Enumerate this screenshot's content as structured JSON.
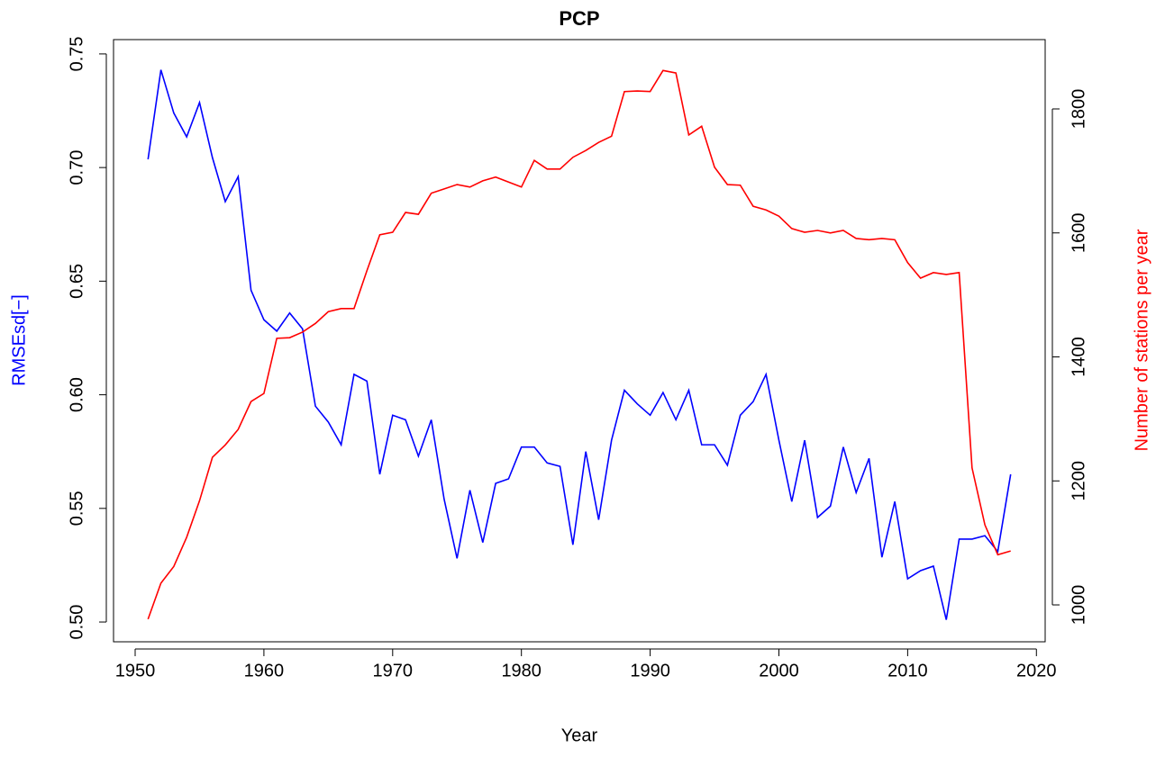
{
  "chart_data": {
    "type": "line",
    "title": "PCP",
    "xlabel": "Year",
    "ylabel": "RMSEsd[−]",
    "y2label": "Number of stations per year",
    "x": [
      1951,
      1952,
      1953,
      1954,
      1955,
      1956,
      1957,
      1958,
      1959,
      1960,
      1961,
      1962,
      1963,
      1964,
      1965,
      1966,
      1967,
      1968,
      1969,
      1970,
      1971,
      1972,
      1973,
      1974,
      1975,
      1976,
      1977,
      1978,
      1979,
      1980,
      1981,
      1982,
      1983,
      1984,
      1985,
      1986,
      1987,
      1988,
      1989,
      1990,
      1991,
      1992,
      1993,
      1994,
      1995,
      1996,
      1997,
      1998,
      1999,
      2000,
      2001,
      2002,
      2003,
      2004,
      2005,
      2006,
      2007,
      2008,
      2009,
      2010,
      2011,
      2012,
      2013,
      2014,
      2015,
      2016,
      2017,
      2018
    ],
    "series": [
      {
        "color": "#0000ff",
        "axis": "y",
        "values": [
          0.7036,
          0.743,
          0.724,
          0.7135,
          0.7286,
          0.7044,
          0.685,
          0.696,
          0.646,
          0.633,
          0.628,
          0.636,
          0.629,
          0.595,
          0.588,
          0.578,
          0.609,
          0.606,
          0.565,
          0.591,
          0.589,
          0.573,
          0.589,
          0.554,
          0.528,
          0.558,
          0.535,
          0.561,
          0.563,
          0.577,
          0.577,
          0.57,
          0.5685,
          0.534,
          0.575,
          0.545,
          0.58,
          0.602,
          0.596,
          0.591,
          0.601,
          0.589,
          0.602,
          0.578,
          0.578,
          0.569,
          0.591,
          0.597,
          0.609,
          0.58,
          0.553,
          0.58,
          0.546,
          0.551,
          0.577,
          0.557,
          0.572,
          0.5285,
          0.553,
          0.519,
          0.5226,
          0.5246,
          0.501,
          0.5365,
          0.5365,
          0.538,
          0.531,
          0.565
        ]
      },
      {
        "color": "#ff0000",
        "axis": "y2",
        "values": [
          977,
          1035,
          1062,
          1109,
          1168,
          1238,
          1258,
          1283,
          1328,
          1341,
          1430,
          1431,
          1440,
          1454,
          1473,
          1478,
          1478,
          1539,
          1597,
          1601,
          1633,
          1630,
          1664,
          1671,
          1678,
          1674,
          1684,
          1690,
          1682,
          1674,
          1717,
          1703,
          1703,
          1722,
          1733,
          1746,
          1756,
          1828,
          1829,
          1828,
          1862,
          1858,
          1758,
          1772,
          1706,
          1678,
          1677,
          1643,
          1637,
          1627,
          1607,
          1601,
          1604,
          1600,
          1604,
          1591,
          1589,
          1591,
          1589,
          1552,
          1527,
          1536,
          1533,
          1536,
          1221,
          1129,
          1081,
          1087
        ]
      }
    ],
    "xlim": [
      1948.32,
      2020.68
    ],
    "xticks": [
      1950,
      1960,
      1970,
      1980,
      1990,
      2000,
      2010,
      2020
    ],
    "ylim": [
      0.4913,
      0.7563
    ],
    "yticks": [
      {
        "value": 0.5,
        "label": "0.50"
      },
      0.55,
      {
        "value": 0.6,
        "label": "0.60"
      },
      0.65,
      {
        "value": 0.7,
        "label": "0.70"
      },
      0.75
    ],
    "y2lim": [
      940.5,
      1911.8
    ],
    "y2ticks": [
      1000,
      1200,
      1400,
      1600,
      1800
    ]
  }
}
